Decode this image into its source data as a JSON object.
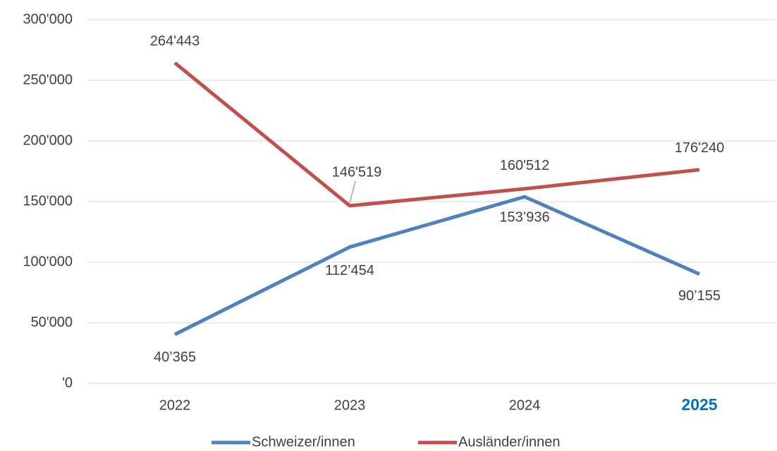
{
  "chart_data": {
    "type": "line",
    "categories": [
      "2022",
      "2023",
      "2024",
      "2025"
    ],
    "series": [
      {
        "name": "Schweizer/innen",
        "color": "#4f81bd",
        "values": [
          40365,
          112454,
          153936,
          90155
        ],
        "value_labels": [
          "40’365",
          "112’454",
          "153’936",
          "90’155"
        ]
      },
      {
        "name": "Ausländer/innen",
        "color": "#c0504d",
        "values": [
          264443,
          146519,
          160512,
          176240
        ],
        "value_labels": [
          "264'443",
          "146'519",
          "160'512",
          "176'240"
        ]
      }
    ],
    "ylim": [
      0,
      300000
    ],
    "yticks": [
      {
        "value": 0,
        "label": "'0"
      },
      {
        "value": 50000,
        "label": "50'000"
      },
      {
        "value": 100000,
        "label": "100'000"
      },
      {
        "value": 150000,
        "label": "150'000"
      },
      {
        "value": 200000,
        "label": "200'000"
      },
      {
        "value": 250000,
        "label": "250'000"
      },
      {
        "value": 300000,
        "label": "300'000"
      }
    ],
    "grid": true,
    "legend": "bottom"
  }
}
